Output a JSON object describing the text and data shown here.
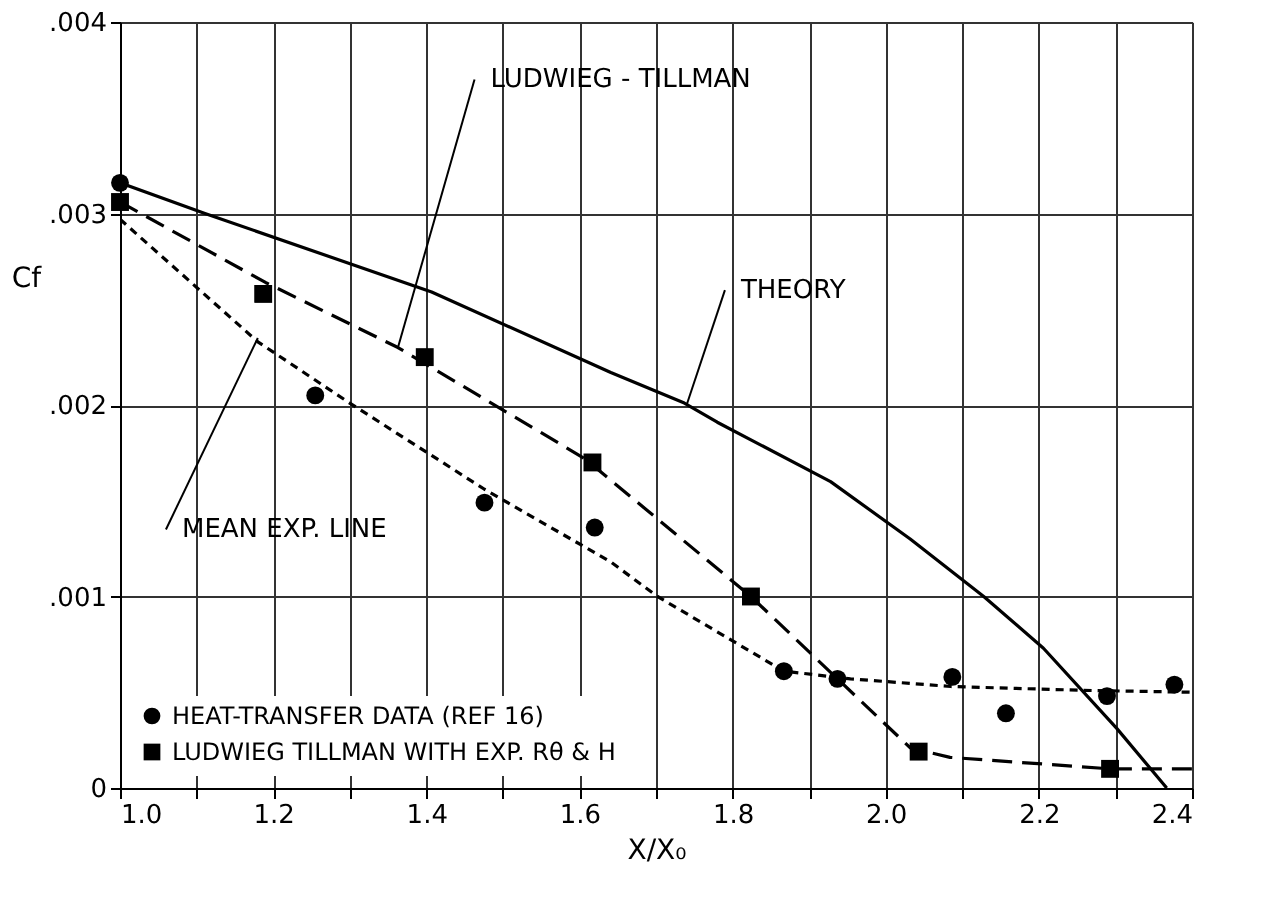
{
  "chart_data": {
    "type": "line",
    "xlabel": "X/X₀",
    "ylabel": "Cf",
    "xlim": [
      1.0,
      2.4
    ],
    "ylim": [
      0,
      0.004
    ],
    "xticks": [
      {
        "value": 1.0,
        "label": "1.0"
      },
      {
        "value": 1.1,
        "label": null
      },
      {
        "value": 1.2,
        "label": "1.2"
      },
      {
        "value": 1.3,
        "label": null
      },
      {
        "value": 1.4,
        "label": "1.4"
      },
      {
        "value": 1.5,
        "label": null
      },
      {
        "value": 1.6,
        "label": "1.6"
      },
      {
        "value": 1.7,
        "label": null
      },
      {
        "value": 1.8,
        "label": "1.8"
      },
      {
        "value": 1.9,
        "label": null
      },
      {
        "value": 2.0,
        "label": "2.0"
      },
      {
        "value": 2.1,
        "label": null
      },
      {
        "value": 2.2,
        "label": "2.2"
      },
      {
        "value": 2.3,
        "label": null
      },
      {
        "value": 2.4,
        "label": "2.4"
      }
    ],
    "yticks": [
      {
        "value": 0,
        "label": "0"
      },
      {
        "value": 0.001,
        "label": ".001"
      },
      {
        "value": 0.002,
        "label": ".002"
      },
      {
        "value": 0.003,
        "label": ".003"
      },
      {
        "value": 0.004,
        "label": ".004"
      }
    ],
    "grid": true,
    "legend": "bottom left",
    "series": [
      {
        "color": "#000000",
        "line_style": "solid",
        "x": [
          1.0,
          1.111,
          1.407,
          1.641,
          1.737,
          1.78,
          1.928,
          2.032,
          2.128,
          2.206,
          2.302,
          2.367
        ],
        "values": [
          0.00316,
          0.003,
          0.00259,
          0.00217,
          0.00201,
          0.00191,
          0.0016,
          0.0013,
          0.001,
          0.00073,
          0.00031,
          0.0
        ]
      },
      {
        "color": "#000000",
        "line_style": "dashed",
        "x": [
          1.0,
          1.19,
          1.363,
          1.607,
          1.824,
          1.937,
          2.032,
          2.084,
          2.293,
          2.4
        ],
        "values": [
          0.00306,
          0.00264,
          0.0023,
          0.00172,
          0.001,
          0.00057,
          0.00021,
          0.00016,
          0.0001,
          0.0001
        ]
      },
      {
        "color": "#000000",
        "line_style": "dotted",
        "x": [
          1.0,
          1.18,
          1.3,
          1.476,
          1.641,
          1.702,
          1.867,
          1.954,
          2.085,
          2.258,
          2.4
        ],
        "values": [
          0.00297,
          0.00233,
          0.00201,
          0.00156,
          0.00118,
          0.001,
          0.00061,
          0.00057,
          0.00053,
          0.00051,
          0.0005
        ]
      },
      {
        "type": "scatter",
        "name": "HEAT-TRANSFER DATA (REF 16)",
        "color": "#000000",
        "marker": "circle",
        "x": [
          1.0,
          1.255,
          1.476,
          1.62,
          1.867,
          1.937,
          2.087,
          2.157,
          2.289,
          2.377
        ],
        "values": [
          0.00316,
          0.00205,
          0.00149,
          0.00136,
          0.00061,
          0.00057,
          0.00058,
          0.00039,
          0.00048,
          0.00054
        ]
      },
      {
        "type": "scatter",
        "name": "LUDWIEG TILLMAN WITH EXP. Rθ & H",
        "color": "#000000",
        "marker": "square",
        "x": [
          1.0,
          1.187,
          1.398,
          1.617,
          1.824,
          2.043,
          2.293
        ],
        "values": [
          0.00306,
          0.00258,
          0.00225,
          0.0017,
          0.001,
          0.00019,
          0.0001
        ]
      }
    ],
    "annotations": [
      {
        "text": "LUDWIEG - TILLMAN",
        "x": 1.363,
        "y": 0.0023
      },
      {
        "text": "THEORY",
        "x": 1.74,
        "y": 0.002
      },
      {
        "text": "MEAN EXP. LINE",
        "x": 1.18,
        "y": 0.00235
      }
    ]
  }
}
